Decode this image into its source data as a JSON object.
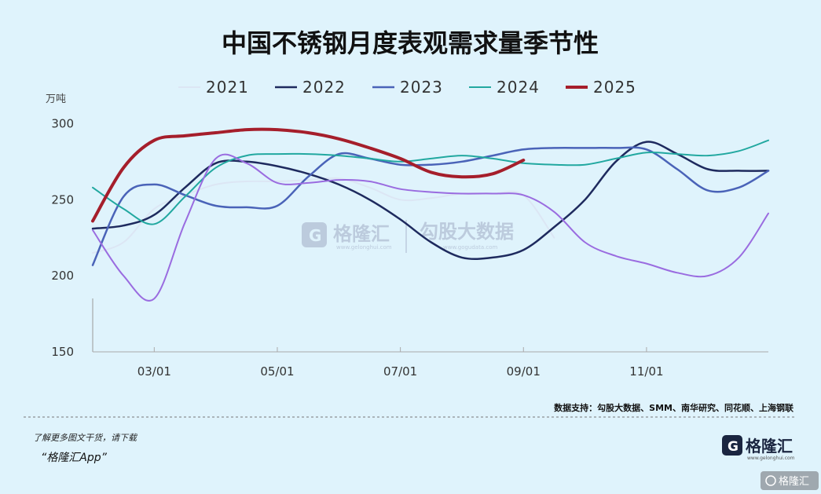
{
  "chart_data": {
    "type": "line",
    "title": "中国不锈钢月度表观需求量季节性",
    "unit": "万吨",
    "x_ticks": [
      "03/01",
      "05/01",
      "07/01",
      "09/01",
      "11/01"
    ],
    "y_ticks": [
      150,
      200,
      250,
      300
    ],
    "ylim": [
      150,
      310
    ],
    "xlim": [
      2,
      12.98
    ],
    "series": [
      {
        "name": "2021",
        "color": "#dce6f4",
        "width": 2,
        "x": [
          2,
          2.5,
          3,
          3.5,
          4,
          4.5,
          5,
          5.5,
          6,
          6.5,
          7,
          7.5,
          8,
          8.5,
          9,
          9.5
        ],
        "y": [
          215,
          222,
          244,
          253,
          260,
          262,
          262,
          263,
          264,
          258,
          250,
          251,
          254,
          254,
          253,
          225
        ]
      },
      {
        "name": "2022",
        "color": "#1e2a5e",
        "width": 2.5,
        "x": [
          2,
          2.5,
          3,
          3.5,
          4,
          4.5,
          5,
          5.5,
          6,
          6.5,
          7,
          7.5,
          8,
          8.5,
          9,
          9.5,
          10,
          10.5,
          11,
          11.5,
          12,
          12.5,
          12.98
        ],
        "y": [
          231,
          233,
          240,
          258,
          274,
          275,
          272,
          267,
          260,
          250,
          237,
          222,
          212,
          212,
          217,
          232,
          250,
          275,
          288,
          280,
          270,
          269,
          269
        ]
      },
      {
        "name": "2023",
        "color": "#4a63b8",
        "width": 2.5,
        "x": [
          2,
          2.5,
          3,
          3.5,
          4,
          4.5,
          5,
          5.5,
          6,
          6.5,
          7,
          7.5,
          8,
          8.5,
          9,
          9.5,
          10,
          10.5,
          11,
          11.5,
          12,
          12.5,
          12.98
        ],
        "y": [
          207,
          252,
          260,
          253,
          246,
          245,
          246,
          265,
          280,
          277,
          273,
          273,
          275,
          279,
          283,
          284,
          284,
          284,
          283,
          270,
          256,
          258,
          269
        ]
      },
      {
        "name": "2024",
        "color": "#22a8a0",
        "width": 2,
        "x": [
          2,
          2.5,
          3,
          3.5,
          4,
          4.5,
          5,
          5.5,
          6,
          6.5,
          7,
          7.5,
          8,
          8.5,
          9,
          9.5,
          10,
          10.5,
          11,
          11.5,
          12,
          12.5,
          12.98
        ],
        "y": [
          258,
          244,
          234,
          252,
          271,
          279,
          280,
          280,
          279,
          277,
          275,
          277,
          279,
          277,
          274,
          273,
          273,
          277,
          281,
          280,
          279,
          282,
          289
        ]
      },
      {
        "name": "",
        "color": "#9a6ce0",
        "width": 2,
        "x": [
          2,
          2.5,
          3,
          3.5,
          4,
          4.5,
          5,
          5.5,
          6,
          6.5,
          7,
          7.5,
          8,
          8.5,
          9,
          9.5,
          10,
          10.5,
          11,
          11.5,
          12,
          12.5,
          12.98
        ],
        "y": [
          230,
          200,
          185,
          235,
          277,
          274,
          261,
          261,
          263,
          262,
          257,
          255,
          254,
          254,
          253,
          242,
          222,
          213,
          208,
          202,
          200,
          212,
          241
        ]
      },
      {
        "name": "2025",
        "color": "#a51e2b",
        "width": 4,
        "x": [
          2,
          2.5,
          3,
          3.5,
          4,
          4.5,
          5,
          5.5,
          6,
          6.5,
          7,
          7.5,
          8,
          8.5,
          9
        ],
        "y": [
          236,
          271,
          289,
          292,
          294,
          296,
          296,
          294,
          290,
          284,
          277,
          268,
          265,
          267,
          276
        ]
      }
    ],
    "legend_order": [
      0,
      1,
      2,
      3,
      5
    ],
    "legend_position": "top",
    "grid": false
  },
  "footer": {
    "source": "数据支持：勾股大数据、SMM、南华研究、同花顺、上海钢联",
    "promo_line1": "了解更多图文干货，请下载",
    "promo_line2": "“格隆汇App”"
  },
  "watermark": {
    "brand": "格隆汇",
    "brand_url": "www.gelonghui.com",
    "partner": "勾股大数据",
    "partner_url": "www.gogudata.com"
  },
  "logo": {
    "text": "格隆汇",
    "url": "www.gelonghui.com"
  },
  "corner_badge": "格隆汇"
}
